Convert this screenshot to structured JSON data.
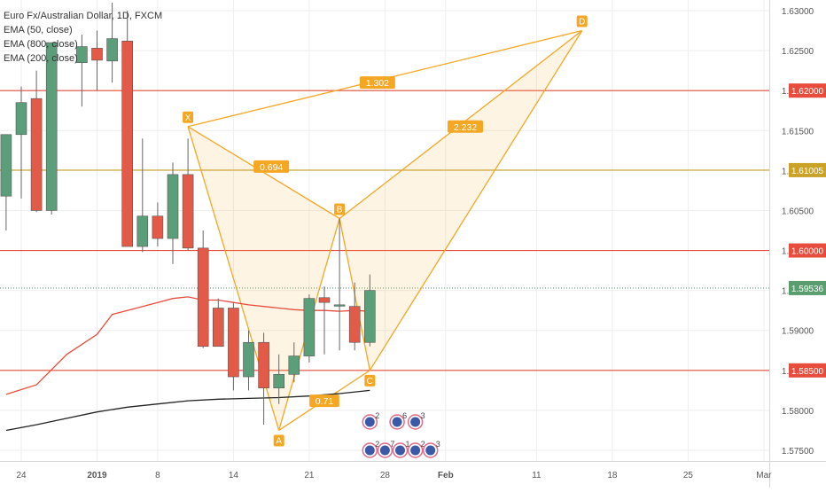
{
  "chart_data": {
    "type": "candlestick",
    "symbol": "Euro Fx/Australian Dollar, 1D, FXCM",
    "indicators": [
      "EMA (50, close)",
      "EMA (800, close)",
      "EMA (200, close)"
    ],
    "x_ticks": [
      {
        "idx": 0,
        "label": "24",
        "bold": false
      },
      {
        "idx": 5,
        "label": "2019",
        "bold": true
      },
      {
        "idx": 9,
        "label": "8",
        "bold": false
      },
      {
        "idx": 14,
        "label": "14",
        "bold": false
      },
      {
        "idx": 19,
        "label": "21",
        "bold": false
      },
      {
        "idx": 24,
        "label": "28",
        "bold": false
      },
      {
        "idx": 28,
        "label": "Feb",
        "bold": true
      },
      {
        "idx": 34,
        "label": "11",
        "bold": false
      },
      {
        "idx": 39,
        "label": "18",
        "bold": false
      },
      {
        "idx": 44,
        "label": "25",
        "bold": false
      },
      {
        "idx": 49,
        "label": "Mar",
        "bold": false
      }
    ],
    "y_ticks": [
      1.575,
      1.58,
      1.585,
      1.59,
      1.595,
      1.6,
      1.605,
      1.61,
      1.615,
      1.62,
      1.625,
      1.63
    ],
    "y_tick_labels": [
      "1.57500",
      "1.58000",
      "1.58500",
      "1.59000",
      "1.59500",
      "1.60000",
      "1.60500",
      "1.61000",
      "1.61500",
      "1.62000",
      "1.62500",
      "1.63000"
    ],
    "ylim": [
      1.5728,
      1.6316
    ],
    "candles": [
      {
        "idx": -1,
        "o": 1.6068,
        "h": 1.6145,
        "l": 1.6025,
        "c": 1.6145
      },
      {
        "idx": 0,
        "o": 1.6145,
        "h": 1.6205,
        "l": 1.6065,
        "c": 1.6185
      },
      {
        "idx": 1,
        "o": 1.619,
        "h": 1.6225,
        "l": 1.6048,
        "c": 1.605
      },
      {
        "idx": 2,
        "o": 1.605,
        "h": 1.626,
        "l": 1.6045,
        "c": 1.626
      },
      {
        "idx": 4,
        "o": 1.6235,
        "h": 1.627,
        "l": 1.618,
        "c": 1.6255
      },
      {
        "idx": 5,
        "o": 1.6253,
        "h": 1.6275,
        "l": 1.62,
        "c": 1.6238
      },
      {
        "idx": 6,
        "o": 1.6237,
        "h": 1.631,
        "l": 1.621,
        "c": 1.6265
      },
      {
        "idx": 7,
        "o": 1.6262,
        "h": 1.63,
        "l": 1.6005,
        "c": 1.6005
      },
      {
        "idx": 8,
        "o": 1.6005,
        "h": 1.614,
        "l": 1.5998,
        "c": 1.6043
      },
      {
        "idx": 9,
        "o": 1.6043,
        "h": 1.606,
        "l": 1.6005,
        "c": 1.6015
      },
      {
        "idx": 10,
        "o": 1.6015,
        "h": 1.611,
        "l": 1.5983,
        "c": 1.6095
      },
      {
        "idx": 11,
        "o": 1.6095,
        "h": 1.614,
        "l": 1.6,
        "c": 1.6003
      },
      {
        "idx": 12,
        "o": 1.6003,
        "h": 1.6025,
        "l": 1.5878,
        "c": 1.588
      },
      {
        "idx": 13,
        "o": 1.5928,
        "h": 1.594,
        "l": 1.588,
        "c": 1.588
      },
      {
        "idx": 14,
        "o": 1.5928,
        "h": 1.5935,
        "l": 1.5825,
        "c": 1.5842
      },
      {
        "idx": 15,
        "o": 1.5842,
        "h": 1.59,
        "l": 1.5825,
        "c": 1.5885
      },
      {
        "idx": 16,
        "o": 1.5885,
        "h": 1.5897,
        "l": 1.5782,
        "c": 1.5828
      },
      {
        "idx": 17,
        "o": 1.5828,
        "h": 1.587,
        "l": 1.5808,
        "c": 1.5845
      },
      {
        "idx": 18,
        "o": 1.5845,
        "h": 1.5885,
        "l": 1.5835,
        "c": 1.5868
      },
      {
        "idx": 19,
        "o": 1.5868,
        "h": 1.5945,
        "l": 1.586,
        "c": 1.594
      },
      {
        "idx": 20,
        "o": 1.5941,
        "h": 1.5955,
        "l": 1.587,
        "c": 1.5935
      },
      {
        "idx": 21,
        "o": 1.5932,
        "h": 1.604,
        "l": 1.5875,
        "c": 1.5932
      },
      {
        "idx": 22,
        "o": 1.593,
        "h": 1.596,
        "l": 1.5875,
        "c": 1.5885
      },
      {
        "idx": 23,
        "o": 1.5885,
        "h": 1.597,
        "l": 1.588,
        "c": 1.595
      }
    ],
    "horizontal_levels": [
      {
        "value": 1.62,
        "label": "1.62000",
        "color": "#e74c3c"
      },
      {
        "value": 1.61005,
        "label": "1.61005",
        "color": "#c9a227"
      },
      {
        "value": 1.6,
        "label": "1.60000",
        "color": "#e74c3c"
      },
      {
        "value": 1.5953,
        "label": "1.59536",
        "color": "#5a9e6f",
        "dotted": true
      },
      {
        "value": 1.585,
        "label": "1.58500",
        "color": "#e74c3c"
      }
    ],
    "ema_series": [
      {
        "color": "#e74c3c",
        "points": [
          [
            -1,
            1.582
          ],
          [
            1,
            1.5832
          ],
          [
            3,
            1.587
          ],
          [
            5,
            1.5895
          ],
          [
            6,
            1.592
          ],
          [
            7,
            1.5925
          ],
          [
            8,
            1.593
          ],
          [
            9,
            1.5935
          ],
          [
            10,
            1.594
          ],
          [
            11,
            1.5942
          ],
          [
            12,
            1.5938
          ],
          [
            13,
            1.5938
          ],
          [
            14,
            1.5935
          ],
          [
            15,
            1.5932
          ],
          [
            16,
            1.593
          ],
          [
            17,
            1.5928
          ],
          [
            18,
            1.5926
          ],
          [
            19,
            1.5925
          ],
          [
            20,
            1.5925
          ],
          [
            21,
            1.5924
          ],
          [
            22,
            1.5925
          ],
          [
            23,
            1.5924
          ]
        ]
      },
      {
        "color": "#222222",
        "points": [
          [
            -1,
            1.5775
          ],
          [
            1,
            1.5782
          ],
          [
            3,
            1.579
          ],
          [
            5,
            1.5798
          ],
          [
            7,
            1.5804
          ],
          [
            9,
            1.5808
          ],
          [
            11,
            1.5812
          ],
          [
            13,
            1.5814
          ],
          [
            15,
            1.5815
          ],
          [
            17,
            1.5816
          ],
          [
            19,
            1.5818
          ],
          [
            21,
            1.5821
          ],
          [
            23,
            1.5825
          ]
        ]
      }
    ],
    "pattern": {
      "points": [
        {
          "label": "X",
          "idx": 11,
          "price": 1.6155
        },
        {
          "label": "A",
          "idx": 17,
          "price": 1.5775
        },
        {
          "label": "B",
          "idx": 21,
          "price": 1.604
        },
        {
          "label": "C",
          "idx": 23,
          "price": 1.585
        },
        {
          "label": "D",
          "idx": 37,
          "price": 1.6275
        }
      ],
      "ratios": [
        {
          "text": "0.694",
          "idx": 16.5,
          "price": 1.6105
        },
        {
          "text": "1.302",
          "idx": 23.5,
          "price": 1.621
        },
        {
          "text": "2.232",
          "idx": 29.3,
          "price": 1.6155
        },
        {
          "text": "0.71",
          "idx": 20,
          "price": 1.5812
        }
      ],
      "color": "#f5a623"
    },
    "event_markers": [
      {
        "idx": 23.0,
        "row": 1,
        "count": "2"
      },
      {
        "idx": 24.8,
        "row": 1,
        "count": "6"
      },
      {
        "idx": 26.0,
        "row": 1,
        "count": "3"
      },
      {
        "idx": 23.0,
        "row": 2,
        "count": "2"
      },
      {
        "idx": 24.0,
        "row": 2,
        "count": "7"
      },
      {
        "idx": 25.0,
        "row": 2,
        "count": "1"
      },
      {
        "idx": 26.0,
        "row": 2,
        "count": "2"
      },
      {
        "idx": 27.0,
        "row": 2,
        "count": "3"
      }
    ],
    "colors": {
      "up": "#5b9e7a",
      "down": "#e25a48",
      "grid": "#eeeeee",
      "axis_text": "#555555"
    }
  }
}
